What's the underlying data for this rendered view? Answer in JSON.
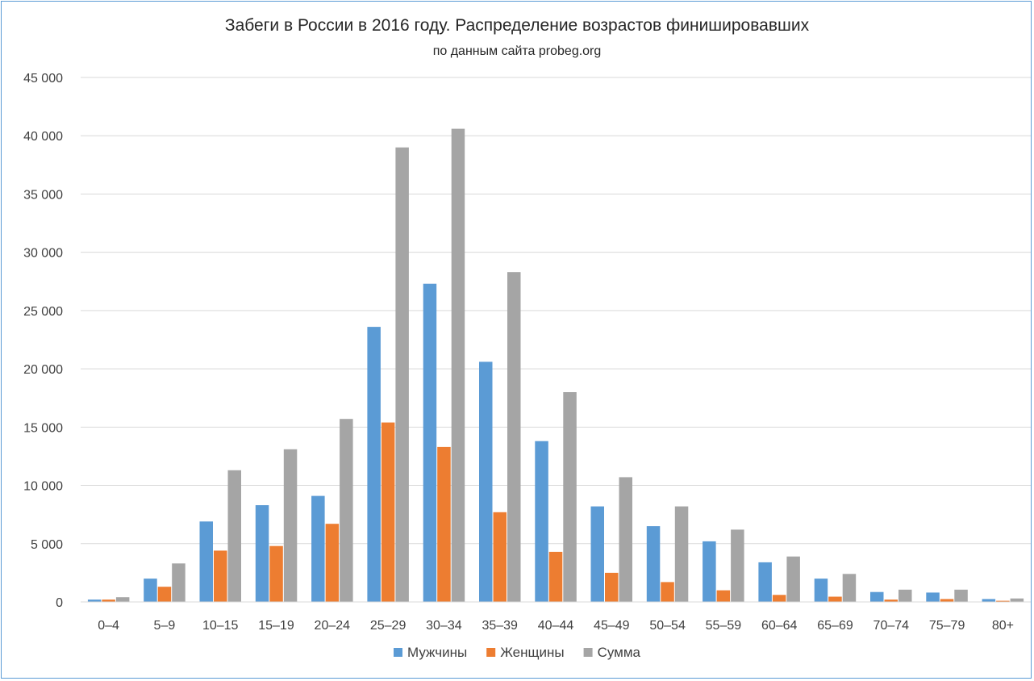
{
  "chart_data": {
    "type": "bar",
    "title": "Забеги в России в 2016 году. Распределение возрастов финишировавших",
    "subtitle": "по данным сайта probeg.org",
    "xlabel": "",
    "ylabel": "",
    "ylim": [
      0,
      45000
    ],
    "y_ticks": [
      0,
      5000,
      10000,
      15000,
      20000,
      25000,
      30000,
      35000,
      40000,
      45000
    ],
    "y_tick_labels": [
      "0",
      "5 000",
      "10 000",
      "15 000",
      "20 000",
      "25 000",
      "30 000",
      "35 000",
      "40 000",
      "45 000"
    ],
    "grid": true,
    "legend_position": "bottom",
    "categories": [
      "0–4",
      "5–9",
      "10–15",
      "15–19",
      "20–24",
      "25–29",
      "30–34",
      "35–39",
      "40–44",
      "45–49",
      "50–54",
      "55–59",
      "60–64",
      "65–69",
      "70–74",
      "75–79",
      "80+"
    ],
    "series": [
      {
        "name": "Мужчины",
        "color": "#5b9bd5",
        "values": [
          200,
          2000,
          6900,
          8300,
          9100,
          23600,
          27300,
          20600,
          13800,
          8200,
          6500,
          5200,
          3400,
          2000,
          850,
          800,
          250
        ]
      },
      {
        "name": "Женщины",
        "color": "#ed7d31",
        "values": [
          200,
          1300,
          4400,
          4800,
          6700,
          15400,
          13300,
          7700,
          4300,
          2500,
          1700,
          1000,
          600,
          450,
          200,
          250,
          100
        ]
      },
      {
        "name": "Сумма",
        "color": "#a5a5a5",
        "values": [
          400,
          3300,
          11300,
          13100,
          15700,
          39000,
          40600,
          28300,
          18000,
          10700,
          8200,
          6200,
          3900,
          2400,
          1050,
          1050,
          300
        ]
      }
    ]
  }
}
